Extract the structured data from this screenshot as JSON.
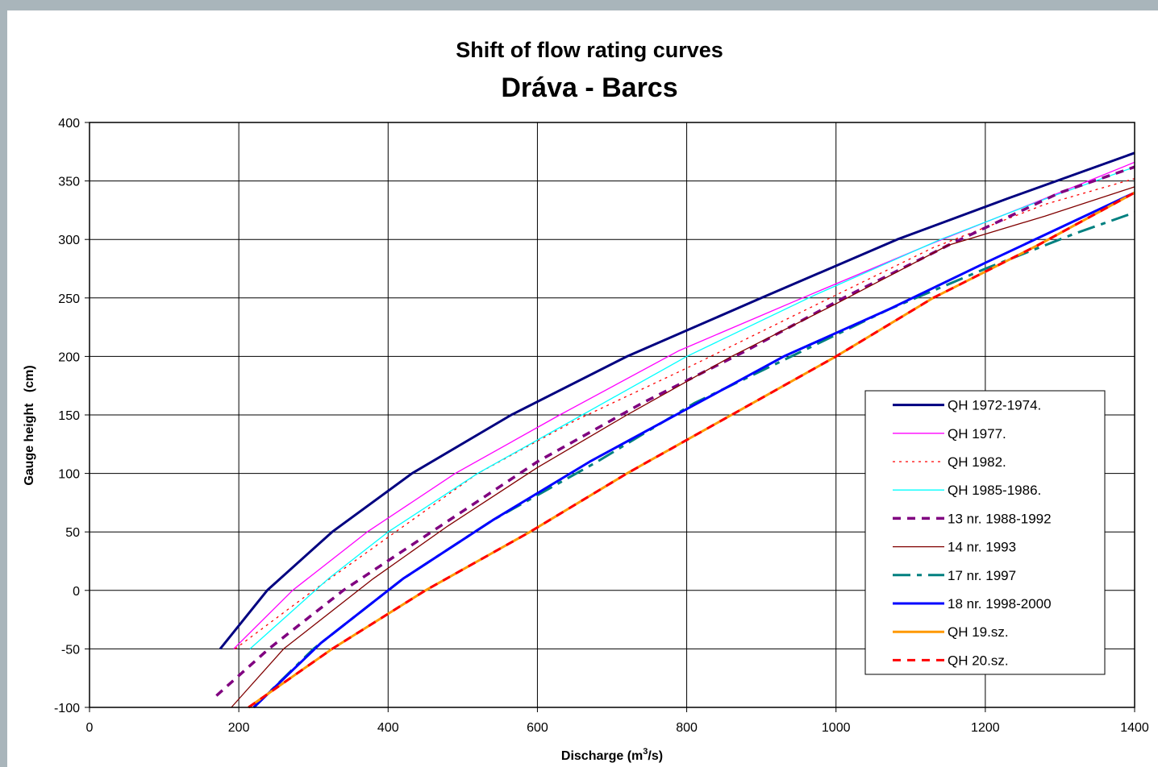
{
  "chart_data": {
    "type": "line",
    "title": "Shift of flow rating curves",
    "subtitle": "Dráva - Barcs",
    "xlabel_main": "Discharge (m",
    "xlabel_sup": "3",
    "xlabel_end": "/s)",
    "ylabel": "Gauge height   (cm)",
    "xlim": [
      0,
      1400
    ],
    "ylim": [
      -100,
      400
    ],
    "x_ticks": [
      "0",
      "200",
      "400",
      "600",
      "800",
      "1000",
      "1200",
      "1400"
    ],
    "y_ticks": [
      "-100",
      "-50",
      "0",
      "50",
      "100",
      "150",
      "200",
      "250",
      "300",
      "350",
      "400"
    ],
    "grid": true,
    "legend_position": "right",
    "series": [
      {
        "name": "QH 1972-1974.",
        "color": "#000080",
        "dash": "solid",
        "width": 3,
        "x": [
          175,
          238,
          325,
          432,
          565,
          720,
          900,
          1082,
          1230,
          1400
        ],
        "y": [
          -50,
          0,
          50,
          100,
          150,
          200,
          250,
          300,
          335,
          374
        ]
      },
      {
        "name": "QH 1977.",
        "color": "#ff00ff",
        "dash": "solid",
        "width": 1.3,
        "x": [
          193,
          272,
          372,
          490,
          630,
          790,
          955,
          1130,
          1280,
          1400
        ],
        "y": [
          -50,
          0,
          50,
          100,
          150,
          205,
          250,
          297,
          335,
          366
        ]
      },
      {
        "name": "QH 1982.",
        "color": "#ff0000",
        "dash": "dot",
        "width": 1.3,
        "x": [
          195,
          300,
          410,
          520,
          650,
          800,
          960,
          1130,
          1280,
          1400
        ],
        "y": [
          -50,
          0,
          50,
          100,
          145,
          190,
          240,
          293,
          330,
          352
        ]
      },
      {
        "name": "QH 1985-1986.",
        "color": "#00ffff",
        "dash": "solid",
        "width": 1.3,
        "x": [
          215,
          320,
          400,
          520,
          660,
          800,
          970,
          1140,
          1290,
          1400
        ],
        "y": [
          -50,
          10,
          50,
          100,
          150,
          200,
          252,
          300,
          337,
          362
        ]
      },
      {
        "name": "13 nr. 1988-1992",
        "color": "#800080",
        "dash": "dash",
        "width": 3.5,
        "x": [
          170,
          240,
          340,
          470,
          600,
          740,
          880,
          1010,
          1150,
          1300,
          1400
        ],
        "y": [
          -90,
          -50,
          0,
          55,
          110,
          160,
          205,
          250,
          295,
          340,
          362
        ]
      },
      {
        "name": "14 nr. 1993",
        "color": "#800000",
        "dash": "solid",
        "width": 1.3,
        "x": [
          190,
          260,
          380,
          480,
          600,
          720,
          860,
          1000,
          1150,
          1280,
          1400
        ],
        "y": [
          -100,
          -50,
          10,
          55,
          105,
          150,
          200,
          245,
          295,
          320,
          345
        ]
      },
      {
        "name": "17 nr. 1997",
        "color": "#008080",
        "dash": "dashdot",
        "width": 3,
        "x": [
          220,
          300,
          420,
          540,
          680,
          810,
          940,
          1070,
          1200,
          1320,
          1400
        ],
        "y": [
          -100,
          -50,
          10,
          60,
          110,
          160,
          200,
          240,
          275,
          305,
          323
        ]
      },
      {
        "name": "18 nr. 1998-2000",
        "color": "#0000ff",
        "dash": "solid",
        "width": 3,
        "x": [
          220,
          310,
          420,
          540,
          670,
          800,
          930,
          1070,
          1200,
          1400
        ],
        "y": [
          -100,
          -45,
          10,
          60,
          110,
          155,
          200,
          240,
          280,
          340
        ]
      },
      {
        "name": "QH 19.sz.",
        "color": "#ff9900",
        "dash": "solid",
        "width": 3,
        "x": [
          213,
          325,
          450,
          590,
          720,
          860,
          1000,
          1130,
          1270,
          1400
        ],
        "y": [
          -100,
          -50,
          0,
          50,
          100,
          150,
          200,
          250,
          295,
          340
        ]
      },
      {
        "name": "QH 20.sz.",
        "color": "#ff0000",
        "dash": "dash",
        "width": 3,
        "x": [
          213,
          325,
          450,
          590,
          720,
          860,
          1000,
          1130,
          1270,
          1400
        ],
        "y": [
          -100,
          -50,
          0,
          50,
          100,
          150,
          200,
          250,
          295,
          340
        ]
      }
    ]
  }
}
